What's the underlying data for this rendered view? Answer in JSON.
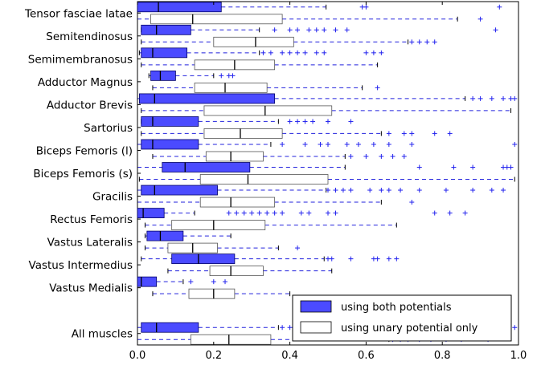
{
  "chart_data": {
    "type": "boxplot",
    "orientation": "horizontal",
    "xlim": [
      0,
      1
    ],
    "xticks": [
      "0.0",
      "0.2",
      "0.4",
      "0.6",
      "0.8",
      "1.0"
    ],
    "legend": {
      "placement": "lower-right",
      "entries": [
        {
          "name": "using both potentials",
          "color": "#4b4bff"
        },
        {
          "name": "using unary potential only",
          "color": "#ffffff"
        }
      ]
    },
    "categories": [
      "Tensor fasciae latae",
      "Semitendinosus",
      "Semimembranosus",
      "Adductor Magnus",
      "Adductor Brevis",
      "Sartorius",
      "Biceps Femoris (l)",
      "Biceps Femoris (s)",
      "Gracilis",
      "Rectus Femoris",
      "Vastus Lateralis",
      "Vastus Intermedius",
      "Vastus Medialis",
      "",
      "All muscles"
    ],
    "series": [
      {
        "name": "using both potentials",
        "color": "#4b4bff",
        "boxes": [
          {
            "whislo": 0.0,
            "q1": 0.0,
            "med": 0.055,
            "q3": 0.22,
            "whishi": 0.495,
            "fliers": [
              0.59,
              0.6,
              0.95
            ]
          },
          {
            "whislo": 0.01,
            "q1": 0.01,
            "med": 0.05,
            "q3": 0.14,
            "whishi": 0.32,
            "fliers": [
              0.36,
              0.4,
              0.42,
              0.45,
              0.47,
              0.49,
              0.52,
              0.55,
              0.94
            ]
          },
          {
            "whislo": 0.005,
            "q1": 0.01,
            "med": 0.04,
            "q3": 0.13,
            "whishi": 0.32,
            "fliers": [
              0.33,
              0.35,
              0.38,
              0.4,
              0.42,
              0.44,
              0.47,
              0.49,
              0.6,
              0.62,
              0.64
            ]
          },
          {
            "whislo": 0.03,
            "q1": 0.035,
            "med": 0.06,
            "q3": 0.1,
            "whishi": 0.2,
            "fliers": [
              0.22,
              0.24,
              0.25
            ]
          },
          {
            "whislo": 0.0,
            "q1": 0.005,
            "med": 0.045,
            "q3": 0.36,
            "whishi": 0.86,
            "fliers": [
              0.88,
              0.9,
              0.93,
              0.96,
              0.98,
              0.99
            ]
          },
          {
            "whislo": 0.01,
            "q1": 0.01,
            "med": 0.04,
            "q3": 0.16,
            "whishi": 0.37,
            "fliers": [
              0.4,
              0.42,
              0.44,
              0.46,
              0.5,
              0.56
            ]
          },
          {
            "whislo": 0.0,
            "q1": 0.01,
            "med": 0.04,
            "q3": 0.16,
            "whishi": 0.35,
            "fliers": [
              0.38,
              0.44,
              0.48,
              0.5,
              0.55,
              0.58,
              0.62,
              0.66,
              0.72,
              0.99
            ]
          },
          {
            "whislo": 0.0,
            "q1": 0.065,
            "med": 0.125,
            "q3": 0.295,
            "whishi": 0.545,
            "fliers": [
              0.74,
              0.83,
              0.88,
              0.96,
              0.97,
              0.98
            ]
          },
          {
            "whislo": 0.0,
            "q1": 0.01,
            "med": 0.045,
            "q3": 0.21,
            "whishi": 0.495,
            "fliers": [
              0.5,
              0.52,
              0.54,
              0.56,
              0.61,
              0.64,
              0.66,
              0.69,
              0.74,
              0.81,
              0.88,
              0.93,
              0.96
            ]
          },
          {
            "whislo": 0.0,
            "q1": 0.0,
            "med": 0.015,
            "q3": 0.07,
            "whishi": 0.15,
            "fliers": [
              0.24,
              0.26,
              0.28,
              0.3,
              0.32,
              0.34,
              0.36,
              0.38,
              0.43,
              0.45,
              0.5,
              0.52,
              0.78,
              0.82,
              0.86
            ]
          },
          {
            "whislo": 0.02,
            "q1": 0.025,
            "med": 0.06,
            "q3": 0.12,
            "whishi": 0.245,
            "fliers": []
          },
          {
            "whislo": 0.01,
            "q1": 0.09,
            "med": 0.16,
            "q3": 0.255,
            "whishi": 0.49,
            "fliers": [
              0.5,
              0.51,
              0.56,
              0.62,
              0.63,
              0.66,
              0.68
            ]
          },
          {
            "whislo": 0.0,
            "q1": 0.0,
            "med": 0.01,
            "q3": 0.05,
            "whishi": 0.12,
            "fliers": [
              0.14,
              0.2,
              0.23
            ]
          },
          null,
          {
            "whislo": 0.0,
            "q1": 0.01,
            "med": 0.05,
            "q3": 0.16,
            "whishi": 0.37,
            "fliers": [
              0.38,
              0.4,
              0.42,
              0.45,
              0.48,
              0.5,
              0.55,
              0.6,
              0.62,
              0.65,
              0.7,
              0.75,
              0.8,
              0.88,
              0.92,
              0.96,
              0.99
            ]
          }
        ]
      },
      {
        "name": "using unary potential only",
        "color": "#ffffff",
        "boxes": [
          {
            "whislo": 0.0,
            "q1": 0.035,
            "med": 0.145,
            "q3": 0.38,
            "whishi": 0.84,
            "fliers": [
              0.9
            ]
          },
          {
            "whislo": 0.01,
            "q1": 0.2,
            "med": 0.31,
            "q3": 0.41,
            "whishi": 0.71,
            "fliers": [
              0.72,
              0.74,
              0.76,
              0.78
            ]
          },
          {
            "whislo": 0.01,
            "q1": 0.15,
            "med": 0.255,
            "q3": 0.36,
            "whishi": 0.63,
            "fliers": []
          },
          {
            "whislo": 0.04,
            "q1": 0.15,
            "med": 0.23,
            "q3": 0.34,
            "whishi": 0.59,
            "fliers": [
              0.63
            ]
          },
          {
            "whislo": 0.01,
            "q1": 0.175,
            "med": 0.335,
            "q3": 0.51,
            "whishi": 0.98,
            "fliers": []
          },
          {
            "whislo": 0.01,
            "q1": 0.175,
            "med": 0.27,
            "q3": 0.38,
            "whishi": 0.64,
            "fliers": [
              0.66,
              0.7,
              0.72,
              0.78,
              0.82
            ]
          },
          {
            "whislo": 0.04,
            "q1": 0.18,
            "med": 0.245,
            "q3": 0.33,
            "whishi": 0.545,
            "fliers": [
              0.56,
              0.6,
              0.64,
              0.67,
              0.7
            ]
          },
          {
            "whislo": 0.005,
            "q1": 0.165,
            "med": 0.29,
            "q3": 0.5,
            "whishi": 0.99,
            "fliers": []
          },
          {
            "whislo": 0.0,
            "q1": 0.165,
            "med": 0.245,
            "q3": 0.36,
            "whishi": 0.64,
            "fliers": [
              0.72
            ]
          },
          {
            "whislo": 0.02,
            "q1": 0.09,
            "med": 0.2,
            "q3": 0.335,
            "whishi": 0.68,
            "fliers": []
          },
          {
            "whislo": 0.02,
            "q1": 0.08,
            "med": 0.145,
            "q3": 0.21,
            "whishi": 0.37,
            "fliers": [
              0.42
            ]
          },
          {
            "whislo": 0.08,
            "q1": 0.19,
            "med": 0.245,
            "q3": 0.33,
            "whishi": 0.51,
            "fliers": []
          },
          {
            "whislo": 0.04,
            "q1": 0.135,
            "med": 0.2,
            "q3": 0.255,
            "whishi": 0.4,
            "fliers": []
          },
          null,
          {
            "whislo": 0.0,
            "q1": 0.14,
            "med": 0.24,
            "q3": 0.35,
            "whishi": 0.66,
            "fliers": [
              0.67,
              0.69,
              0.71,
              0.74,
              0.77,
              0.81,
              0.85,
              0.92
            ]
          }
        ]
      }
    ]
  }
}
